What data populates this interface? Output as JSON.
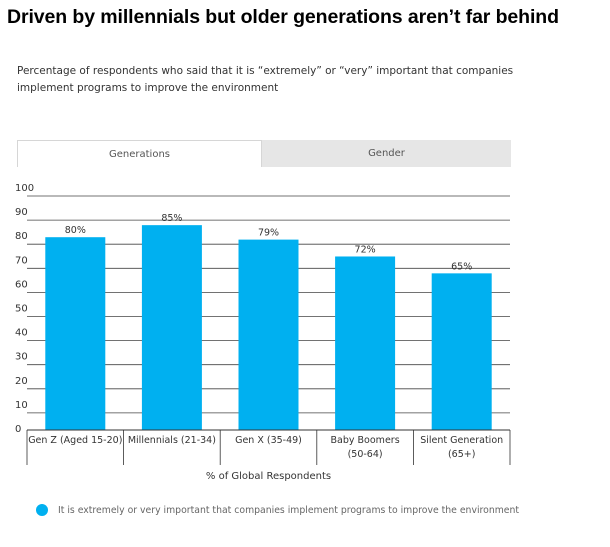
{
  "header": {
    "title": "Driven by millennials but older generations aren’t far behind",
    "subtitle": "Percentage of respondents who said that it is “extremely” or “very” important that companies implement programs to improve the environment"
  },
  "tabs": [
    {
      "label": "Generations",
      "active": true
    },
    {
      "label": "Gender",
      "active": false
    }
  ],
  "chart_data": {
    "type": "bar",
    "categories": [
      [
        "Gen Z (Aged 15-20)"
      ],
      [
        "Millennials (21-34)"
      ],
      [
        "Gen X (35-49)"
      ],
      [
        "Baby Boomers",
        "(50-64)"
      ],
      [
        "Silent Generation",
        "(65+)"
      ]
    ],
    "series": [
      {
        "name": "It is extremely or very important that companies implement programs to improve the environment",
        "values": [
          80,
          85,
          79,
          72,
          65
        ],
        "labels": [
          "80%",
          "85%",
          "79%",
          "72%",
          "65%"
        ],
        "color": "#00b0f0"
      }
    ],
    "yticks": [
      0,
      10,
      20,
      30,
      40,
      50,
      60,
      70,
      80,
      90,
      100
    ],
    "ylim": [
      0,
      100
    ],
    "xlabel": "% of Global Respondents",
    "ylabel": "",
    "grid": true,
    "legend": "bottom"
  }
}
